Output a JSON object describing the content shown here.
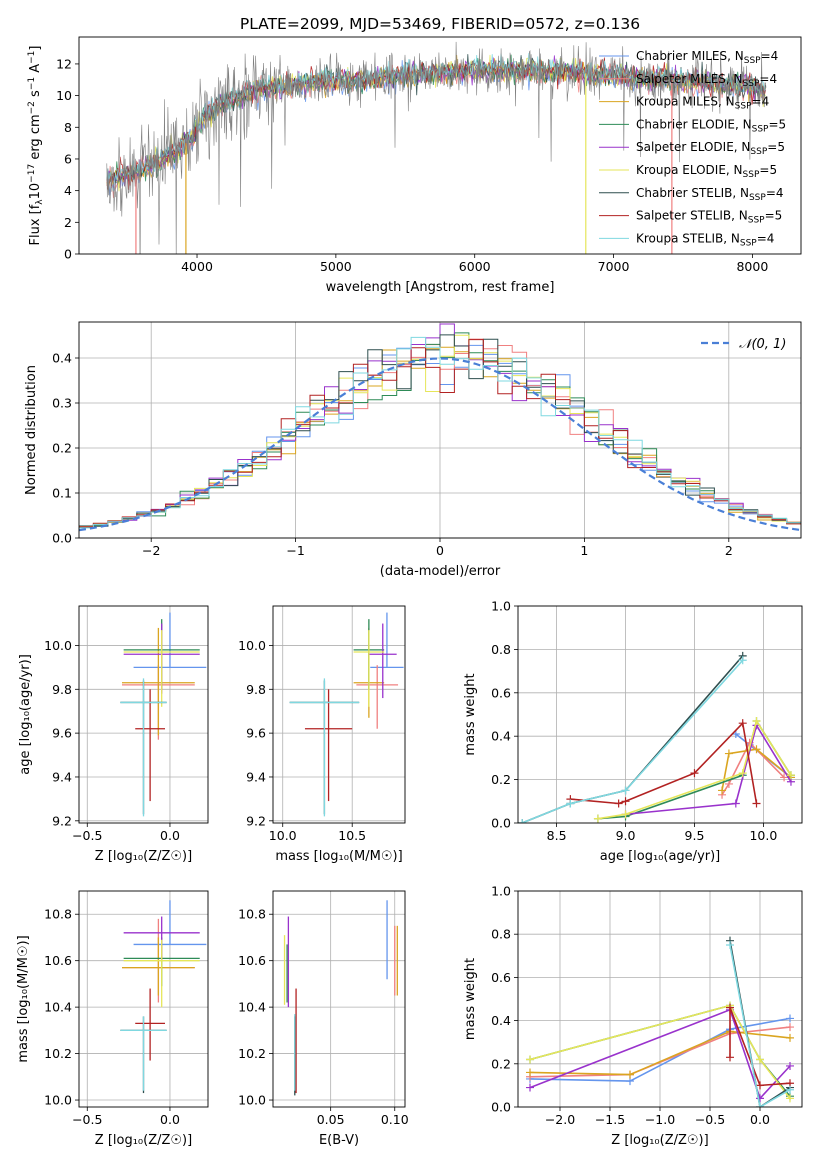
{
  "chart_data": [
    {
      "id": "spectrum",
      "type": "line",
      "title": "PLATE=2099, MJD=53469, FIBERID=0572, z=0.136",
      "xlabel": "wavelength [Angstrom, rest frame]",
      "ylabel_parts": {
        "a": "Flux [f",
        "b": "λ",
        "c": "10",
        "d": "−17",
        "e": " erg cm",
        "f": "−2",
        "g": " s",
        "h": "−1",
        "i": " A",
        "j": "−1",
        "k": "]"
      },
      "xlim": [
        3150,
        8350
      ],
      "ylim": [
        0,
        13.7
      ],
      "xticks": [
        4000,
        5000,
        6000,
        7000,
        8000
      ],
      "yticks": [
        0,
        2,
        4,
        6,
        8,
        10,
        12
      ],
      "legend_position": "upper right",
      "series": [
        {
          "name": "Chabrier MILES, N",
          "sub": "SSP",
          "suffix": "=4",
          "color": "#6495ed"
        },
        {
          "name": "Salpeter MILES, N",
          "sub": "SSP",
          "suffix": "=4",
          "color": "#f08080"
        },
        {
          "name": "Kroupa MILES, N",
          "sub": "SSP",
          "suffix": "=4",
          "color": "#daa520"
        },
        {
          "name": "Chabrier ELODIE, N",
          "sub": "SSP",
          "suffix": "=5",
          "color": "#2e8b57"
        },
        {
          "name": "Salpeter ELODIE, N",
          "sub": "SSP",
          "suffix": "=5",
          "color": "#9932cc"
        },
        {
          "name": "Kroupa ELODIE, N",
          "sub": "SSP",
          "suffix": "=5",
          "color": "#e6e65a"
        },
        {
          "name": "Chabrier STELIB, N",
          "sub": "SSP",
          "suffix": "=4",
          "color": "#2f4f4f"
        },
        {
          "name": "Salpeter STELIB, N",
          "sub": "SSP",
          "suffix": "=5",
          "color": "#b22222"
        },
        {
          "name": "Kroupa STELIB, N",
          "sub": "SSP",
          "suffix": "=4",
          "color": "#7fd8e0"
        }
      ],
      "data_color": "#808080",
      "continuum": {
        "x": [
          3350,
          3450,
          3550,
          3650,
          3750,
          3850,
          3950,
          4050,
          4150,
          4250,
          4350,
          4450,
          4600,
          4800,
          5000,
          5200,
          5400,
          5600,
          5800,
          6000,
          6200,
          6400,
          6600,
          6800,
          7000,
          7200,
          7400,
          7600,
          7800,
          8000,
          8100
        ],
        "y": [
          4.6,
          4.9,
          5.0,
          5.6,
          6.0,
          6.5,
          7.2,
          8.6,
          9.3,
          9.7,
          10.1,
          10.4,
          10.6,
          10.8,
          10.9,
          11.0,
          11.2,
          11.4,
          11.5,
          11.6,
          11.6,
          11.6,
          11.5,
          11.4,
          11.3,
          11.1,
          11.0,
          10.9,
          10.7,
          10.5,
          10.3
        ]
      },
      "dropouts": [
        {
          "x": 3560,
          "color": "#f08080"
        },
        {
          "x": 3920,
          "color": "#daa520"
        },
        {
          "x": 6800,
          "color": "#e6e65a"
        },
        {
          "x": 7420,
          "color": "#f08080"
        }
      ]
    },
    {
      "id": "residuals",
      "type": "line",
      "xlabel": "(data-model)/error",
      "ylabel": "Normed distribution",
      "xlim": [
        -2.5,
        2.5
      ],
      "ylim": [
        0,
        0.48
      ],
      "xticks": [
        -2,
        -1,
        0,
        1,
        2
      ],
      "yticks": [
        0.0,
        0.1,
        0.2,
        0.3,
        0.4
      ],
      "grid": true,
      "legend": {
        "label": "𝒩(0, 1)",
        "position": "upper right",
        "color": "#4a7fd6"
      },
      "bin_width": 0.1,
      "bin_start": -2.5,
      "gaussian_mu": 0,
      "gaussian_sigma": 1
    },
    {
      "id": "age-Z",
      "type": "scatter",
      "xlabel": "Z [log₁₀(Z/Z☉)]",
      "ylabel": "age  [log₁₀(age/yr)]",
      "xlim": [
        -0.55,
        0.23
      ],
      "ylim": [
        9.19,
        10.18
      ],
      "xticks": [
        -0.5,
        0.0
      ],
      "yticks": [
        9.2,
        9.4,
        9.6,
        9.8,
        10.0
      ],
      "grid": true,
      "points": [
        {
          "x": 0.0,
          "y": 9.9,
          "xerr": 0.22,
          "yerr": [
            0.0,
            0.25
          ],
          "c": 0
        },
        {
          "x": -0.07,
          "y": 9.82,
          "xerr": 0.22,
          "yerr": [
            0.25,
            0.09
          ],
          "c": 1
        },
        {
          "x": -0.07,
          "y": 9.83,
          "xerr": 0.22,
          "yerr": [
            0.24,
            0.25
          ],
          "c": 2
        },
        {
          "x": -0.05,
          "y": 9.98,
          "xerr": 0.23,
          "yerr": [
            0.18,
            0.14
          ],
          "c": 3
        },
        {
          "x": -0.05,
          "y": 9.96,
          "xerr": 0.23,
          "yerr": [
            0.18,
            0.14
          ],
          "c": 4
        },
        {
          "x": -0.05,
          "y": 9.97,
          "xerr": 0.23,
          "yerr": [
            0.25,
            0.1
          ],
          "c": 5
        },
        {
          "x": -0.16,
          "y": 9.74,
          "xerr": 0.14,
          "yerr": [
            0.51,
            0.1
          ],
          "c": 6
        },
        {
          "x": -0.12,
          "y": 9.62,
          "xerr": 0.09,
          "yerr": [
            0.33,
            0.18
          ],
          "c": 7
        },
        {
          "x": -0.16,
          "y": 9.74,
          "xerr": 0.14,
          "yerr": [
            0.52,
            0.11
          ],
          "c": 8
        }
      ]
    },
    {
      "id": "age-mass",
      "type": "scatter",
      "xlabel": "mass [log₁₀(M/M☉)]",
      "ylabel": "",
      "xlim": [
        9.93,
        10.88
      ],
      "ylim": [
        9.19,
        10.18
      ],
      "xticks": [
        10.0,
        10.5
      ],
      "yticks": [
        9.2,
        9.4,
        9.6,
        9.8,
        10.0
      ],
      "grid": true,
      "points": [
        {
          "x": 10.75,
          "y": 9.9,
          "xerr": 0.12,
          "yerr": [
            0.0,
            0.25
          ],
          "c": 0
        },
        {
          "x": 10.68,
          "y": 9.82,
          "xerr": 0.15,
          "yerr": [
            0.2,
            0.09
          ],
          "c": 1
        },
        {
          "x": 10.62,
          "y": 9.83,
          "xerr": 0.11,
          "yerr": [
            0.16,
            0.25
          ],
          "c": 2
        },
        {
          "x": 10.62,
          "y": 9.98,
          "xerr": 0.11,
          "yerr": [
            0.18,
            0.14
          ],
          "c": 3
        },
        {
          "x": 10.72,
          "y": 9.96,
          "xerr": 0.1,
          "yerr": [
            0.2,
            0.14
          ],
          "c": 4
        },
        {
          "x": 10.62,
          "y": 9.97,
          "xerr": 0.11,
          "yerr": [
            0.25,
            0.1
          ],
          "c": 5
        },
        {
          "x": 10.3,
          "y": 9.74,
          "xerr": 0.25,
          "yerr": [
            0.51,
            0.1
          ],
          "c": 6
        },
        {
          "x": 10.33,
          "y": 9.62,
          "xerr": 0.17,
          "yerr": [
            0.33,
            0.18
          ],
          "c": 7
        },
        {
          "x": 10.3,
          "y": 9.74,
          "xerr": 0.25,
          "yerr": [
            0.52,
            0.11
          ],
          "c": 8
        }
      ]
    },
    {
      "id": "weight-age",
      "type": "line",
      "xlabel": "age  [log₁₀(age/yr)]",
      "ylabel": "mass weight",
      "xlim": [
        8.22,
        10.28
      ],
      "ylim": [
        0,
        1.0
      ],
      "xticks": [
        8.5,
        9.0,
        9.5,
        10.0
      ],
      "yticks": [
        0.0,
        0.2,
        0.4,
        0.6,
        0.8,
        1.0
      ],
      "grid": true,
      "series": [
        {
          "c": 0,
          "x": [
            9.8,
            9.9,
            10.2
          ],
          "y": [
            0.41,
            0.36,
            0.21
          ]
        },
        {
          "c": 1,
          "x": [
            9.7,
            9.75,
            9.9,
            10.15
          ],
          "y": [
            0.13,
            0.18,
            0.37,
            0.21
          ]
        },
        {
          "c": 2,
          "x": [
            9.7,
            9.75,
            9.95,
            10.2
          ],
          "y": [
            0.15,
            0.32,
            0.34,
            0.21
          ]
        },
        {
          "c": 3,
          "x": [
            8.8,
            9.0,
            9.85,
            9.95,
            10.2
          ],
          "y": [
            0.02,
            0.03,
            0.22,
            0.47,
            0.22
          ]
        },
        {
          "c": 4,
          "x": [
            9.0,
            9.8,
            9.95,
            10.2
          ],
          "y": [
            0.04,
            0.09,
            0.45,
            0.19
          ]
        },
        {
          "c": 5,
          "x": [
            8.8,
            9.0,
            9.85,
            9.95,
            10.2
          ],
          "y": [
            0.02,
            0.04,
            0.23,
            0.47,
            0.22
          ]
        },
        {
          "c": 6,
          "x": [
            8.25,
            8.6,
            9.0,
            9.85
          ],
          "y": [
            0.0,
            0.09,
            0.15,
            0.77
          ]
        },
        {
          "c": 7,
          "x": [
            8.6,
            8.95,
            9.0,
            9.5,
            9.85,
            9.95
          ],
          "y": [
            0.11,
            0.09,
            0.1,
            0.23,
            0.46,
            0.09
          ]
        },
        {
          "c": 8,
          "x": [
            8.25,
            8.6,
            9.0,
            9.85
          ],
          "y": [
            0.0,
            0.09,
            0.15,
            0.75
          ]
        }
      ]
    },
    {
      "id": "mass-Z",
      "type": "scatter",
      "xlabel": "Z [log₁₀(Z/Z☉)]",
      "ylabel": "mass [log₁₀(M/M☉)]",
      "xlim": [
        -0.55,
        0.23
      ],
      "ylim": [
        9.97,
        10.9
      ],
      "xticks": [
        -0.5,
        0.0
      ],
      "yticks": [
        10.0,
        10.2,
        10.4,
        10.6,
        10.8
      ],
      "grid": true,
      "points": [
        {
          "x": 0.0,
          "y": 10.67,
          "xerr": 0.22,
          "yerr": [
            0.0,
            0.19
          ],
          "c": 0
        },
        {
          "x": -0.07,
          "y": 10.57,
          "xerr": 0.22,
          "yerr": [
            0.15,
            0.21
          ],
          "c": 1
        },
        {
          "x": -0.07,
          "y": 10.57,
          "xerr": 0.22,
          "yerr": [
            0.12,
            0.13
          ],
          "c": 2
        },
        {
          "x": -0.05,
          "y": 10.61,
          "xerr": 0.23,
          "yerr": [
            0.12,
            0.09
          ],
          "c": 3
        },
        {
          "x": -0.05,
          "y": 10.72,
          "xerr": 0.23,
          "yerr": [
            0.12,
            0.07
          ],
          "c": 4
        },
        {
          "x": -0.05,
          "y": 10.6,
          "xerr": 0.23,
          "yerr": [
            0.2,
            0.09
          ],
          "c": 5
        },
        {
          "x": -0.16,
          "y": 10.3,
          "xerr": 0.14,
          "yerr": [
            0.27,
            0.06
          ],
          "c": 6
        },
        {
          "x": -0.12,
          "y": 10.33,
          "xerr": 0.09,
          "yerr": [
            0.16,
            0.15
          ],
          "c": 7
        },
        {
          "x": -0.16,
          "y": 10.3,
          "xerr": 0.14,
          "yerr": [
            0.26,
            0.06
          ],
          "c": 8
        }
      ]
    },
    {
      "id": "mass-EBV",
      "type": "scatter",
      "xlabel": "E(B-V)",
      "ylabel": "",
      "xlim": [
        0.005,
        0.108
      ],
      "ylim": [
        9.97,
        10.9
      ],
      "xticks": [
        0.05,
        0.1
      ],
      "yticks": [
        10.0,
        10.2,
        10.4,
        10.6,
        10.8
      ],
      "grid": true,
      "points": [
        {
          "x": 0.094,
          "y": 10.67,
          "xerr": 0,
          "yerr": [
            0.15,
            0.19
          ],
          "c": 0
        },
        {
          "x": 0.1,
          "y": 10.65,
          "xerr": 0,
          "yerr": [
            0.2,
            0.1
          ],
          "c": 1
        },
        {
          "x": 0.102,
          "y": 10.6,
          "xerr": 0,
          "yerr": [
            0.15,
            0.15
          ],
          "c": 2
        },
        {
          "x": 0.016,
          "y": 10.55,
          "xerr": 0,
          "yerr": [
            0.13,
            0.12
          ],
          "c": 3
        },
        {
          "x": 0.017,
          "y": 10.62,
          "xerr": 0,
          "yerr": [
            0.22,
            0.17
          ],
          "c": 4
        },
        {
          "x": 0.014,
          "y": 10.56,
          "xerr": 0,
          "yerr": [
            0.15,
            0.15
          ],
          "c": 5
        },
        {
          "x": 0.022,
          "y": 10.2,
          "xerr": 0,
          "yerr": [
            0.18,
            0.16
          ],
          "c": 6
        },
        {
          "x": 0.023,
          "y": 10.33,
          "xerr": 0,
          "yerr": [
            0.3,
            0.15
          ],
          "c": 7
        },
        {
          "x": 0.022,
          "y": 10.2,
          "xerr": 0,
          "yerr": [
            0.16,
            0.17
          ],
          "c": 8
        }
      ]
    },
    {
      "id": "weight-Z",
      "type": "line",
      "xlabel": "Z [log₁₀(Z/Z☉)]",
      "ylabel": "mass weight",
      "xlim": [
        -2.42,
        0.42
      ],
      "ylim": [
        0,
        1.0
      ],
      "xticks": [
        -2.0,
        -1.5,
        -1.0,
        -0.5,
        0.0
      ],
      "yticks": [
        0.0,
        0.2,
        0.4,
        0.6,
        0.8,
        1.0
      ],
      "grid": true,
      "series": [
        {
          "c": 0,
          "x": [
            -2.3,
            -1.3,
            -0.3,
            0.3
          ],
          "y": [
            0.13,
            0.12,
            0.36,
            0.41
          ]
        },
        {
          "c": 1,
          "x": [
            -2.3,
            -1.3,
            -0.3,
            0.3
          ],
          "y": [
            0.14,
            0.15,
            0.34,
            0.37
          ]
        },
        {
          "c": 2,
          "x": [
            -2.3,
            -1.3,
            -0.3,
            0.3
          ],
          "y": [
            0.16,
            0.15,
            0.35,
            0.32
          ]
        },
        {
          "c": 3,
          "x": [
            -2.3,
            -0.3,
            0.0,
            0.3
          ],
          "y": [
            0.22,
            0.47,
            0.22,
            0.05
          ]
        },
        {
          "c": 4,
          "x": [
            -2.3,
            -0.3,
            0.0,
            0.3
          ],
          "y": [
            0.09,
            0.45,
            0.04,
            0.19
          ]
        },
        {
          "c": 5,
          "x": [
            -2.3,
            -0.3,
            0.0,
            0.3
          ],
          "y": [
            0.22,
            0.47,
            0.22,
            0.04
          ]
        },
        {
          "c": 6,
          "x": [
            -0.3,
            0.0,
            0.3
          ],
          "y": [
            0.77,
            0.0,
            0.09
          ]
        },
        {
          "c": 7,
          "x": [
            -0.3,
            -0.3,
            0.0,
            0.3
          ],
          "y": [
            0.23,
            0.46,
            0.1,
            0.11
          ]
        },
        {
          "c": 8,
          "x": [
            -0.3,
            0.0,
            0.3
          ],
          "y": [
            0.75,
            0.0,
            0.08
          ]
        }
      ]
    }
  ]
}
